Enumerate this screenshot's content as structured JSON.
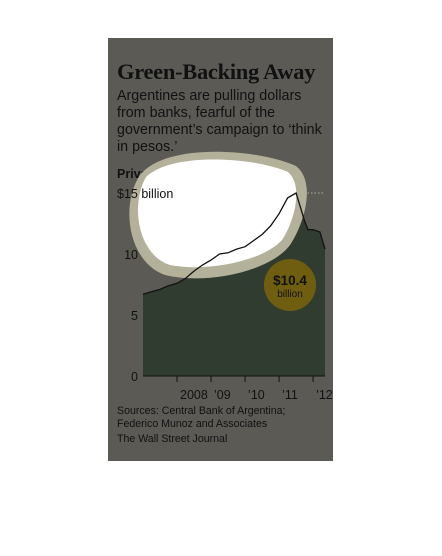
{
  "header": {
    "title": "Green-Backing Away",
    "subtitle": "Argentines are pulling dollars from banks, fearful of the government’s campaign to ‘think in pesos.’"
  },
  "chart_data": {
    "type": "area",
    "title": "Private-sector dollar deposits",
    "xlabel": "",
    "ylabel": "",
    "ylim": [
      0,
      15
    ],
    "grid": true,
    "x_tick_labels": [
      "2008",
      "’09",
      "’10",
      "’11",
      "’12"
    ],
    "y_tick_labels": [
      "$15 billion",
      "10",
      "5",
      "0"
    ],
    "y_tick_values": [
      15,
      10,
      5,
      0
    ],
    "x": [
      2007.0,
      2007.25,
      2007.5,
      2007.75,
      2008.0,
      2008.25,
      2008.5,
      2008.75,
      2009.0,
      2009.25,
      2009.5,
      2009.75,
      2010.0,
      2010.25,
      2010.5,
      2010.75,
      2011.0,
      2011.25,
      2011.5,
      2011.75,
      2011.85,
      2012.0,
      2012.2,
      2012.35
    ],
    "values": [
      6.7,
      6.9,
      7.1,
      7.4,
      7.6,
      8.0,
      8.6,
      9.1,
      9.5,
      10.0,
      10.1,
      10.4,
      10.6,
      11.1,
      11.6,
      12.3,
      13.3,
      14.6,
      15.0,
      12.7,
      12.0,
      12.0,
      11.8,
      10.4
    ],
    "annotations": [
      {
        "text": "$10.4",
        "subtext": "billion"
      }
    ]
  },
  "source": "Sources: Central Bank of Argentina; Federico Munoz and Associates",
  "credit": "The Wall Street Journal",
  "colors": {
    "panel": "#5b5a55",
    "area": "#313c31",
    "line": "#111111",
    "callout": "#6f5e10"
  }
}
